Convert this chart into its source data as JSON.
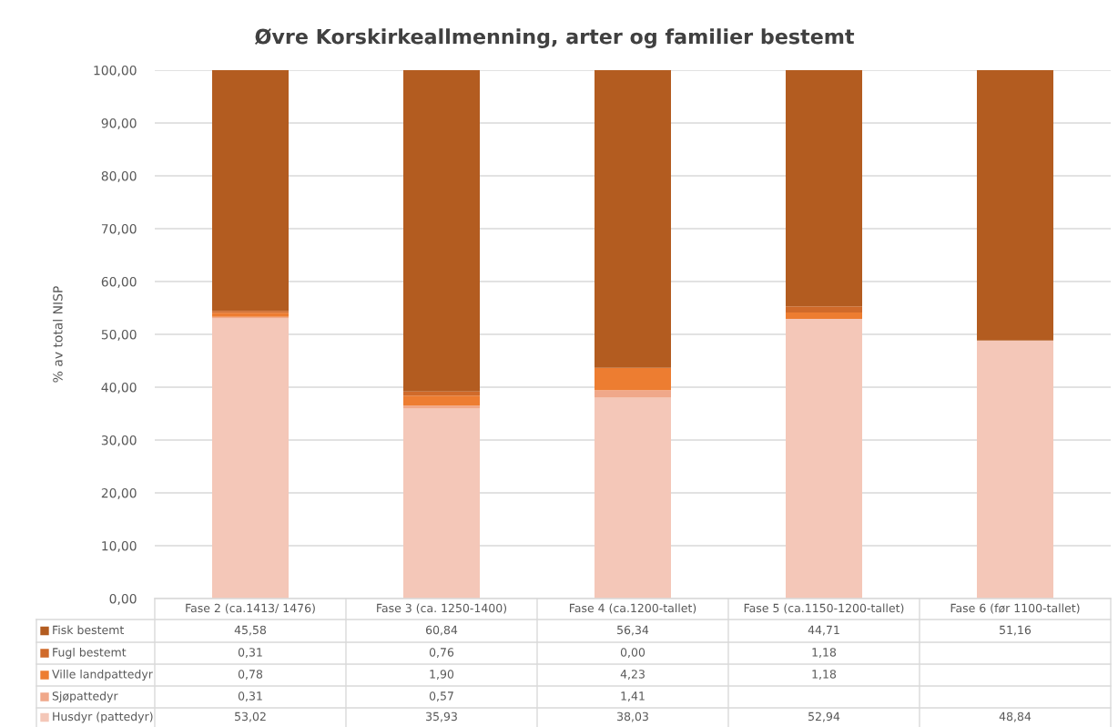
{
  "chart_data": {
    "type": "bar",
    "stacked": true,
    "title": "Øvre Korskirkeallmenning, arter og familier bestemt",
    "ylabel": "% av total NISP",
    "categories": [
      "Fase 2 (ca.1413/ 1476)",
      "Fase 3 (ca. 1250-1400)",
      "Fase 4 (ca.1200-tallet)",
      "Fase 5 (ca.1150-1200-tallet)",
      "Fase 6 (før 1100-tallet)"
    ],
    "series": [
      {
        "name": "Husdyr (pattedyr)",
        "color": "#f4c7b8",
        "values": [
          53.02,
          35.93,
          38.03,
          52.94,
          48.84
        ],
        "value_labels": [
          "53,02",
          "35,93",
          "38,03",
          "52,94",
          "48,84"
        ]
      },
      {
        "name": "Sjøpattedyr",
        "color": "#f0a88a",
        "values": [
          0.31,
          0.57,
          1.41,
          null,
          null
        ],
        "value_labels": [
          "0,31",
          "0,57",
          "1,41",
          null,
          null
        ]
      },
      {
        "name": "Ville landpattedyr",
        "color": "#ed7d31",
        "values": [
          0.78,
          1.9,
          4.23,
          1.18,
          null
        ],
        "value_labels": [
          "0,78",
          "1,90",
          "4,23",
          "1,18",
          null
        ]
      },
      {
        "name": "Fugl bestemt",
        "color": "#d06a2a",
        "values": [
          0.31,
          0.76,
          0.0,
          1.18,
          null
        ],
        "value_labels": [
          "0,31",
          "0,76",
          "0,00",
          "1,18",
          null
        ]
      },
      {
        "name": "Fisk bestemt",
        "color": "#b35c20",
        "values": [
          45.58,
          60.84,
          56.34,
          44.71,
          51.16
        ],
        "value_labels": [
          "45,58",
          "60,84",
          "56,34",
          "44,71",
          "51,16"
        ]
      }
    ],
    "ylim": [
      0,
      100
    ],
    "yticks": [
      {
        "value": 0,
        "label": "0,00"
      },
      {
        "value": 10,
        "label": "10,00"
      },
      {
        "value": 20,
        "label": "20,00"
      },
      {
        "value": 30,
        "label": "30,00"
      },
      {
        "value": 40,
        "label": "40,00"
      },
      {
        "value": 50,
        "label": "50,00"
      },
      {
        "value": 60,
        "label": "60,00"
      },
      {
        "value": 70,
        "label": "70,00"
      },
      {
        "value": 80,
        "label": "80,00"
      },
      {
        "value": 90,
        "label": "90,00"
      },
      {
        "value": 100,
        "label": "100,00"
      }
    ],
    "grid": "y",
    "legend": "bottom"
  }
}
